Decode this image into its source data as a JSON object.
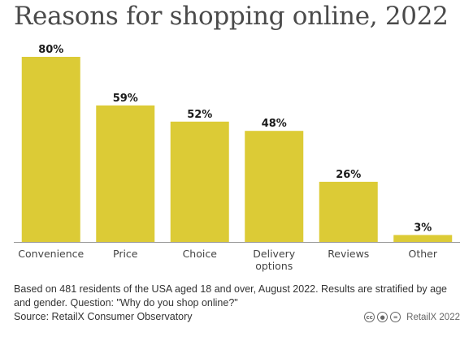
{
  "title": "Reasons for shopping online, 2022",
  "chart_data": {
    "type": "bar",
    "categories": [
      "Convenience",
      "Price",
      "Choice",
      "Delivery options",
      "Reviews",
      "Other"
    ],
    "category_lines": [
      [
        "Convenience"
      ],
      [
        "Price"
      ],
      [
        "Choice"
      ],
      [
        "Delivery",
        "options"
      ],
      [
        "Reviews"
      ],
      [
        "Other"
      ]
    ],
    "values": [
      80,
      59,
      52,
      48,
      26,
      3
    ],
    "value_labels": [
      "80%",
      "59%",
      "52%",
      "48%",
      "26%",
      "3%"
    ],
    "ylim": [
      0,
      80
    ],
    "bar_color": "#dccb36",
    "grid": false,
    "title": "Reasons for shopping online, 2022"
  },
  "notes": "Based on 481 residents of the USA aged 18 and over, August 2022. Results are stratified by age and gender. Question: \"Why do you shop online?\"",
  "source": "Source: RetailX Consumer Observatory",
  "credit": "RetailX 2022",
  "license_icons": [
    "cc-icon",
    "attribution-icon",
    "no-derivatives-icon"
  ]
}
